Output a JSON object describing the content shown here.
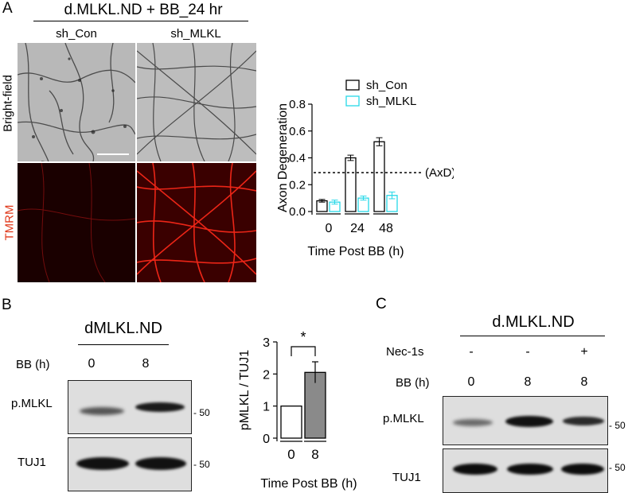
{
  "panel_a": {
    "letter": "A",
    "title": "d.MLKL.ND + BB_24 hr",
    "col_labels": [
      "sh_Con",
      "sh_MLKL"
    ],
    "row_labels": [
      "Bright-field",
      "TMRM"
    ],
    "row_label_colors": [
      "#000000",
      "#e0381a"
    ]
  },
  "panel_b": {
    "letter": "B",
    "title": "dMLKL.ND",
    "bb_label": "BB (h)",
    "bb_values": [
      "0",
      "8"
    ],
    "row_labels": [
      "p.MLKL",
      "TUJ1"
    ],
    "mw_markers": [
      "50",
      "50"
    ]
  },
  "panel_c": {
    "letter": "C",
    "title": "d.MLKL.ND",
    "nec_label": "Nec-1s",
    "nec_values": [
      "-",
      "-",
      "+"
    ],
    "bb_label": "BB (h)",
    "bb_values": [
      "0",
      "8",
      "8"
    ],
    "row_labels": [
      "p.MLKL",
      "TUJ1"
    ],
    "mw_markers": [
      "50",
      "50"
    ]
  },
  "colors": {
    "sh_con": "#000000",
    "sh_mlkl": "#27d8e8",
    "bar_gray": "#8a8a8a",
    "tmrm_red": "#e0381a"
  },
  "chart_data": [
    {
      "type": "bar",
      "categories": [
        "0",
        "24",
        "48"
      ],
      "series": [
        {
          "name": "sh_Con",
          "values": [
            0.08,
            0.4,
            0.52
          ],
          "errors": [
            0.01,
            0.02,
            0.03
          ]
        },
        {
          "name": "sh_MLKL",
          "values": [
            0.07,
            0.1,
            0.12
          ],
          "errors": [
            0.015,
            0.015,
            0.025
          ]
        }
      ],
      "threshold": {
        "value": 0.29,
        "label": "(AxD)",
        "style": "dashed"
      },
      "xlabel": "Time Post BB  (h)",
      "ylabel": "Axon Degeneration",
      "ylim": [
        0,
        0.8
      ],
      "yticks": [
        "0.0",
        "0.2",
        "0.4",
        "0.6",
        "0.8"
      ],
      "legend": "top-right"
    },
    {
      "type": "bar",
      "categories": [
        "0",
        "8"
      ],
      "values": [
        1.0,
        2.05
      ],
      "errors": [
        0.0,
        0.33
      ],
      "fills": [
        "#ffffff",
        "#8a8a8a"
      ],
      "significance": {
        "label": "*",
        "between": [
          "0",
          "8"
        ]
      },
      "xlabel": "Time Post BB (h)",
      "ylabel": "pMLKL / TUJ1",
      "ylim": [
        0,
        3
      ],
      "yticks": [
        "0",
        "1",
        "2",
        "3"
      ]
    }
  ]
}
